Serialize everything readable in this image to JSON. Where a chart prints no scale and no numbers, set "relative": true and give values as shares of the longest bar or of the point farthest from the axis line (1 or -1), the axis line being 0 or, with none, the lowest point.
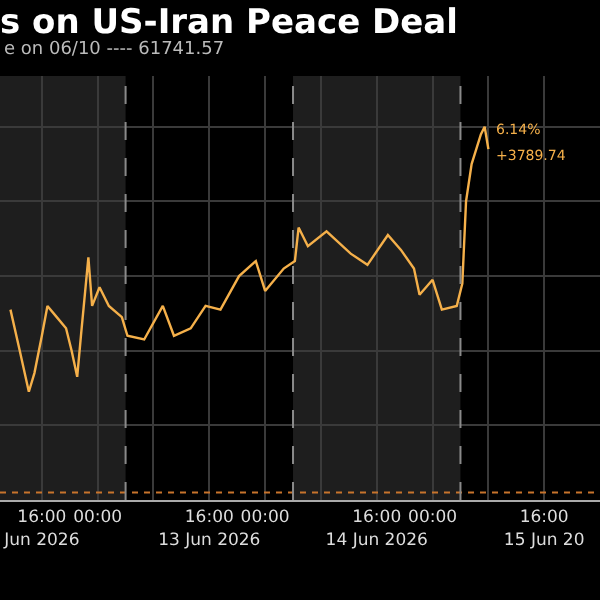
{
  "chart_data": {
    "type": "line",
    "title": "s on US-Iran Peace Deal",
    "subtitle": "e on 06/10 ---- 61741.57",
    "x": [
      "2026-06-12T11:30",
      "2026-06-12T12:50",
      "2026-06-12T14:08",
      "2026-06-12T14:56",
      "2026-06-12T16:00",
      "2026-06-12T16:48",
      "2026-06-12T18:08",
      "2026-06-12T19:28",
      "2026-06-12T20:16",
      "2026-06-12T21:04",
      "2026-06-12T21:36",
      "2026-06-12T22:40",
      "2026-06-12T23:12",
      "2026-06-13T00:16",
      "2026-06-13T01:36",
      "2026-06-13T03:28",
      "2026-06-13T04:16",
      "2026-06-13T06:40",
      "2026-06-13T09:20",
      "2026-06-13T10:56",
      "2026-06-13T13:20",
      "2026-06-13T15:28",
      "2026-06-13T17:36",
      "2026-06-13T20:16",
      "2026-06-13T22:40",
      "2026-06-14T00:00",
      "2026-06-14T02:40",
      "2026-06-14T04:16",
      "2026-06-14T04:48",
      "2026-06-14T06:08",
      "2026-06-14T08:48",
      "2026-06-14T12:16",
      "2026-06-14T14:40",
      "2026-06-14T17:36",
      "2026-06-14T19:28",
      "2026-06-14T21:20",
      "2026-06-14T22:08",
      "2026-06-15T00:00",
      "2026-06-15T01:20",
      "2026-06-15T03:28",
      "2026-06-15T04:16",
      "2026-06-15T04:48",
      "2026-06-15T05:36",
      "2026-06-15T06:56",
      "2026-06-15T07:28",
      "2026-06-15T08:00"
    ],
    "relative": true,
    "series": [
      {
        "color": "#f5b04a",
        "values": [
          0.51,
          0.4,
          0.29,
          0.34,
          0.44,
          0.52,
          0.49,
          0.46,
          0.4,
          0.33,
          0.44,
          0.65,
          0.52,
          0.57,
          0.52,
          0.49,
          0.44,
          0.43,
          0.52,
          0.44,
          0.46,
          0.52,
          0.51,
          0.6,
          0.64,
          0.56,
          0.62,
          0.64,
          0.73,
          0.68,
          0.72,
          0.66,
          0.63,
          0.71,
          0.67,
          0.62,
          0.55,
          0.59,
          0.51,
          0.52,
          0.58,
          0.8,
          0.9,
          0.98,
          1,
          0.94
        ]
      }
    ],
    "xlim": [
      "2026-06-12T10:00",
      "2026-06-16T00:00"
    ],
    "xticks": [
      {
        "value": "2026-06-12T16:00",
        "label": "16:00\nJun 2026"
      },
      {
        "value": "2026-06-13T00:00",
        "label": "00:00"
      },
      {
        "value": "2026-06-13T08:00",
        "label": null
      },
      {
        "value": "2026-06-13T16:00",
        "label": "16:00\n13 Jun 2026"
      },
      {
        "value": "2026-06-14T00:00",
        "label": "00:00"
      },
      {
        "value": "2026-06-14T08:00",
        "label": null
      },
      {
        "value": "2026-06-14T16:00",
        "label": "16:00\n14 Jun 2026"
      },
      {
        "value": "2026-06-15T00:00",
        "label": "00:00"
      },
      {
        "value": "2026-06-15T08:00",
        "label": null
      },
      {
        "value": "2026-06-15T16:00",
        "label": "16:00\n15 Jun 20"
      }
    ],
    "grid": true,
    "bands": [
      {
        "axis": "x",
        "from": "2026-06-12T10:00",
        "to": "2026-06-13T04:00",
        "label": null,
        "color": "#1e1e1e"
      },
      {
        "axis": "x",
        "from": "2026-06-14T04:00",
        "to": "2026-06-15T04:00",
        "label": null,
        "color": "#1e1e1e"
      }
    ],
    "ref_lines": [
      {
        "axis": "y",
        "value": 0.02,
        "label": null,
        "color": "#c8742c",
        "line_style": "dotted"
      },
      {
        "axis": "x",
        "value": "2026-06-13T04:00",
        "label": null,
        "color": "#8a8a8a",
        "line_style": "dashed"
      },
      {
        "axis": "x",
        "value": "2026-06-14T04:00",
        "label": null,
        "color": "#8a8a8a",
        "line_style": "dashed"
      },
      {
        "axis": "x",
        "value": "2026-06-15T04:00",
        "label": null,
        "color": "#8a8a8a",
        "line_style": "dashed"
      }
    ],
    "annotations": [
      {
        "text": "6.14%",
        "x": "2026-06-15T08:00",
        "y": 0.94
      },
      {
        "text": "+3789.74",
        "x": "2026-06-15T08:00",
        "y": 0.94
      }
    ]
  }
}
